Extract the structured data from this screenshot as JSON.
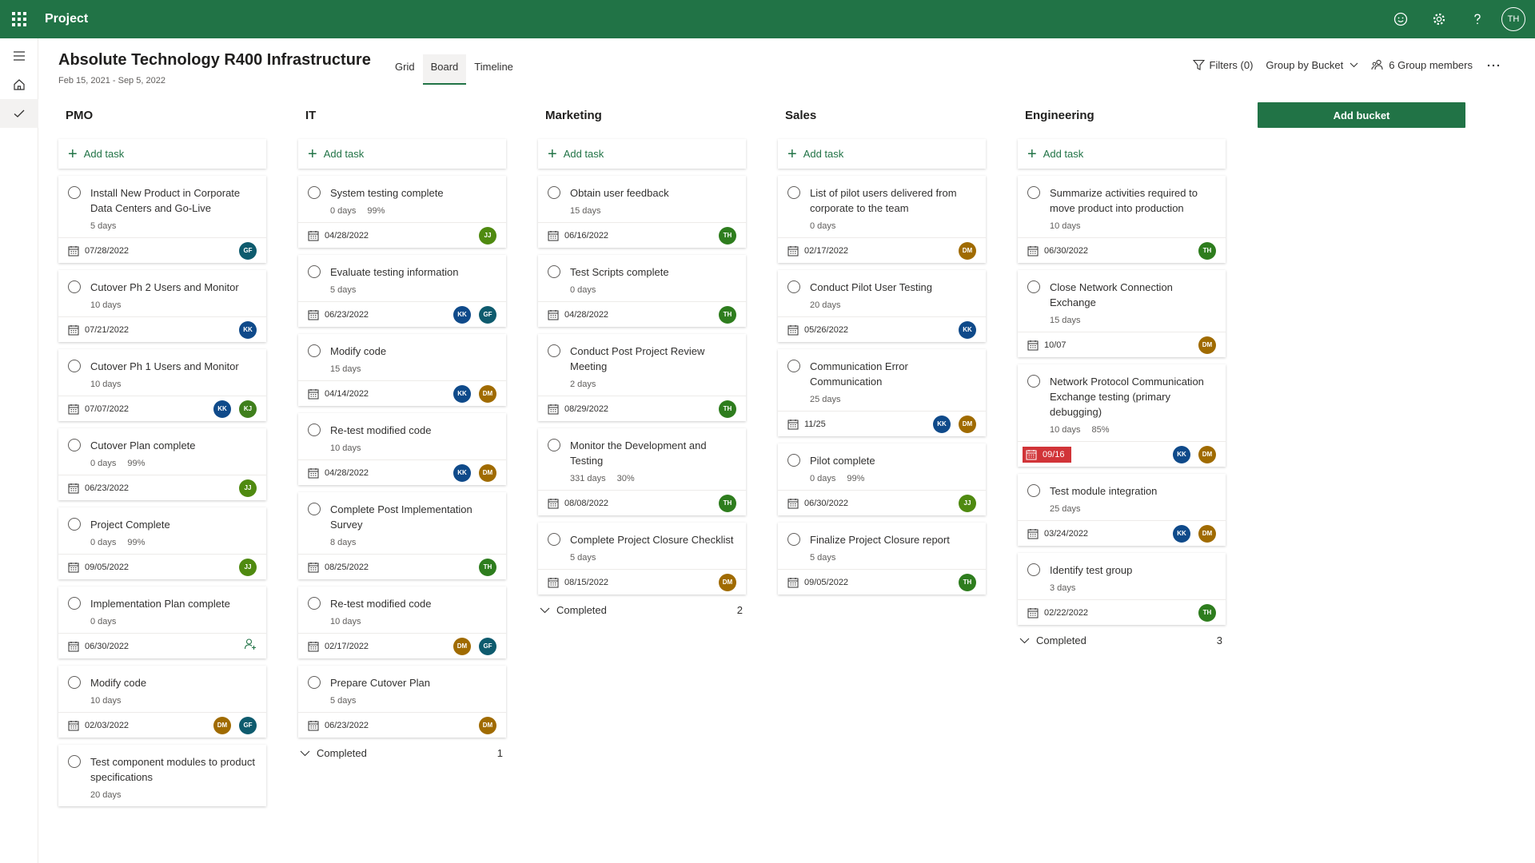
{
  "app": {
    "name": "Project",
    "user_initials": "TH"
  },
  "plan": {
    "title": "Absolute Technology R400 Infrastructure",
    "dates": "Feb 15, 2021 - Sep 5, 2022"
  },
  "views": [
    {
      "label": "Grid"
    },
    {
      "label": "Board"
    },
    {
      "label": "Timeline"
    }
  ],
  "toolbar": {
    "filters": "Filters (0)",
    "group_by": "Group by Bucket",
    "members": "6 Group members"
  },
  "add_task_label": "Add task",
  "add_bucket_label": "Add bucket",
  "completed_label": "Completed",
  "colors": {
    "brand": "#217346",
    "late": "#d13438",
    "GF": "#0e5b6e",
    "KK": "#0f4a8a",
    "KJ": "#3f7f1c",
    "JJ": "#4f8a10",
    "TH": "#2e7d1e",
    "DM": "#a06b00"
  },
  "buckets": [
    {
      "name": "PMO",
      "completed_count": "",
      "tasks": [
        {
          "title": "Install New Product in Corporate Data Centers and Go-Live",
          "duration": "5 days",
          "progress": "",
          "due": "07/28/2022",
          "late": false,
          "assignees": [
            "GF"
          ]
        },
        {
          "title": "Cutover Ph 2 Users and Monitor",
          "duration": "10 days",
          "progress": "",
          "due": "07/21/2022",
          "late": false,
          "assignees": [
            "KK"
          ]
        },
        {
          "title": "Cutover Ph 1 Users and Monitor",
          "duration": "10 days",
          "progress": "",
          "due": "07/07/2022",
          "late": false,
          "assignees": [
            "KK",
            "KJ"
          ]
        },
        {
          "title": "Cutover Plan complete",
          "duration": "0 days",
          "progress": "99%",
          "due": "06/23/2022",
          "late": false,
          "assignees": [
            "JJ"
          ]
        },
        {
          "title": "Project Complete",
          "duration": "0 days",
          "progress": "99%",
          "due": "09/05/2022",
          "late": false,
          "assignees": [
            "JJ"
          ]
        },
        {
          "title": "Implementation Plan complete",
          "duration": "0 days",
          "progress": "",
          "due": "06/30/2022",
          "late": false,
          "assignees": []
        },
        {
          "title": "Modify code",
          "duration": "10 days",
          "progress": "",
          "due": "02/03/2022",
          "late": false,
          "assignees": [
            "DM",
            "GF"
          ]
        },
        {
          "title": "Test component modules to product specifications",
          "duration": "20 days",
          "progress": "",
          "due": "",
          "late": false,
          "assignees": []
        }
      ]
    },
    {
      "name": "IT",
      "completed_count": "1",
      "tasks": [
        {
          "title": "System testing complete",
          "duration": "0 days",
          "progress": "99%",
          "due": "04/28/2022",
          "late": false,
          "assignees": [
            "JJ"
          ]
        },
        {
          "title": "Evaluate testing information",
          "duration": "5 days",
          "progress": "",
          "due": "06/23/2022",
          "late": false,
          "assignees": [
            "KK",
            "GF"
          ]
        },
        {
          "title": "Modify code",
          "duration": "15 days",
          "progress": "",
          "due": "04/14/2022",
          "late": false,
          "assignees": [
            "KK",
            "DM"
          ]
        },
        {
          "title": "Re-test modified code",
          "duration": "10 days",
          "progress": "",
          "due": "04/28/2022",
          "late": false,
          "assignees": [
            "KK",
            "DM"
          ]
        },
        {
          "title": "Complete Post Implementation Survey",
          "duration": "8 days",
          "progress": "",
          "due": "08/25/2022",
          "late": false,
          "assignees": [
            "TH"
          ]
        },
        {
          "title": "Re-test modified code",
          "duration": "10 days",
          "progress": "",
          "due": "02/17/2022",
          "late": false,
          "assignees": [
            "DM",
            "GF"
          ]
        },
        {
          "title": "Prepare Cutover Plan",
          "duration": "5 days",
          "progress": "",
          "due": "06/23/2022",
          "late": false,
          "assignees": [
            "DM"
          ]
        }
      ]
    },
    {
      "name": "Marketing",
      "completed_count": "2",
      "tasks": [
        {
          "title": "Obtain user feedback",
          "duration": "15 days",
          "progress": "",
          "due": "06/16/2022",
          "late": false,
          "assignees": [
            "TH"
          ]
        },
        {
          "title": "Test Scripts complete",
          "duration": "0 days",
          "progress": "",
          "due": "04/28/2022",
          "late": false,
          "assignees": [
            "TH"
          ]
        },
        {
          "title": "Conduct Post Project Review Meeting",
          "duration": "2 days",
          "progress": "",
          "due": "08/29/2022",
          "late": false,
          "assignees": [
            "TH"
          ]
        },
        {
          "title": "Monitor the Development and Testing",
          "duration": "331 days",
          "progress": "30%",
          "due": "08/08/2022",
          "late": false,
          "assignees": [
            "TH"
          ]
        },
        {
          "title": "Complete Project Closure Checklist",
          "duration": "5 days",
          "progress": "",
          "due": "08/15/2022",
          "late": false,
          "assignees": [
            "DM"
          ]
        }
      ]
    },
    {
      "name": "Sales",
      "completed_count": "",
      "tasks": [
        {
          "title": "List of pilot users delivered from corporate to the team",
          "duration": "0 days",
          "progress": "",
          "due": "02/17/2022",
          "late": false,
          "assignees": [
            "DM"
          ]
        },
        {
          "title": "Conduct Pilot User Testing",
          "duration": "20 days",
          "progress": "",
          "due": "05/26/2022",
          "late": false,
          "assignees": [
            "KK"
          ]
        },
        {
          "title": "Communication Error Communication",
          "duration": "25 days",
          "progress": "",
          "due": "11/25",
          "late": false,
          "assignees": [
            "KK",
            "DM"
          ]
        },
        {
          "title": "Pilot complete",
          "duration": "0 days",
          "progress": "99%",
          "due": "06/30/2022",
          "late": false,
          "assignees": [
            "JJ"
          ]
        },
        {
          "title": "Finalize Project Closure report",
          "duration": "5 days",
          "progress": "",
          "due": "09/05/2022",
          "late": false,
          "assignees": [
            "TH"
          ]
        }
      ]
    },
    {
      "name": "Engineering",
      "completed_count": "3",
      "tasks": [
        {
          "title": "Summarize activities required to move product into production",
          "duration": "10 days",
          "progress": "",
          "due": "06/30/2022",
          "late": false,
          "assignees": [
            "TH"
          ]
        },
        {
          "title": "Close Network Connection Exchange",
          "duration": "15 days",
          "progress": "",
          "due": "10/07",
          "late": false,
          "assignees": [
            "DM"
          ]
        },
        {
          "title": "Network Protocol Communication Exchange testing (primary debugging)",
          "duration": "10 days",
          "progress": "85%",
          "due": "09/16",
          "late": true,
          "assignees": [
            "KK",
            "DM"
          ]
        },
        {
          "title": "Test module integration",
          "duration": "25 days",
          "progress": "",
          "due": "03/24/2022",
          "late": false,
          "assignees": [
            "KK",
            "DM"
          ]
        },
        {
          "title": "Identify test group",
          "duration": "3 days",
          "progress": "",
          "due": "02/22/2022",
          "late": false,
          "assignees": [
            "TH"
          ]
        }
      ]
    }
  ]
}
